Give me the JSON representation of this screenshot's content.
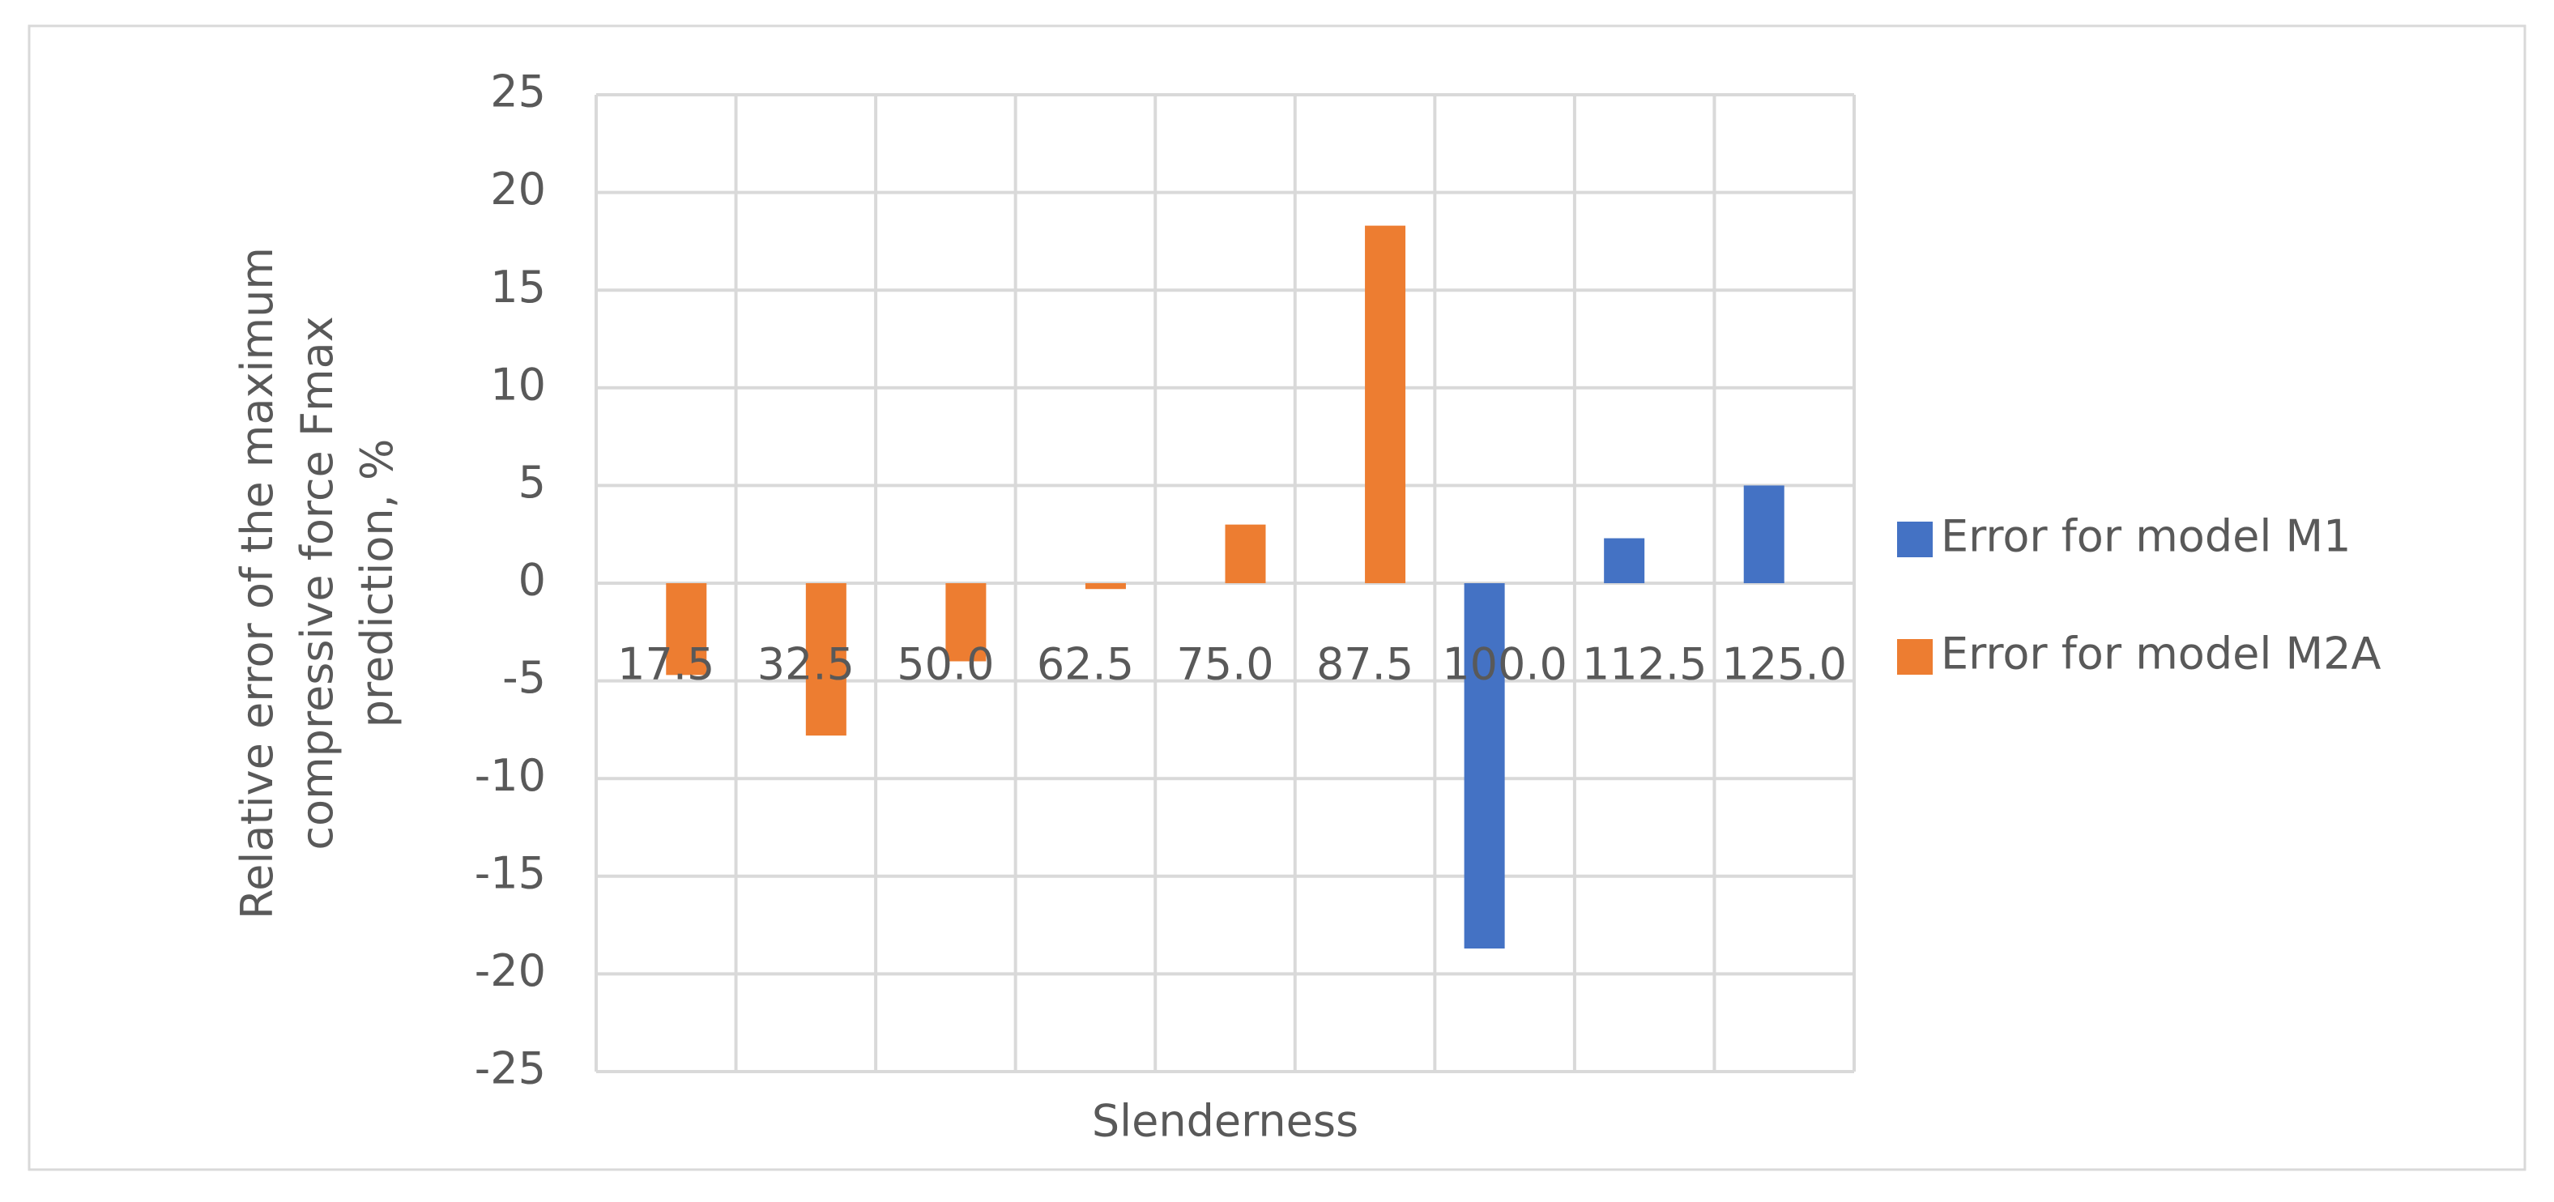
{
  "chart_data": {
    "type": "bar",
    "x_label": "Slenderness",
    "y_label": [
      "Relative error of the maximum",
      "compressive force Fmax",
      "prediction, %"
    ],
    "categories": [
      "17.5",
      "32.5",
      "50.0",
      "62.5",
      "75.0",
      "87.5",
      "100.0",
      "112.5",
      "125.0"
    ],
    "series": [
      {
        "name": "Error for model M1",
        "color": "#4472c4",
        "values": [
          null,
          null,
          null,
          null,
          null,
          null,
          -18.7,
          2.3,
          5.0
        ]
      },
      {
        "name": "Error for model M2A",
        "color": "#ed7d31",
        "values": [
          -4.7,
          -7.8,
          -4.0,
          -0.3,
          3.0,
          18.3,
          null,
          null,
          null
        ]
      }
    ],
    "ylim": [
      -25,
      25
    ],
    "yticks": [
      -25,
      -20,
      -15,
      -10,
      -5,
      0,
      5,
      10,
      15,
      20,
      25
    ],
    "grid": true,
    "legend": "right"
  }
}
